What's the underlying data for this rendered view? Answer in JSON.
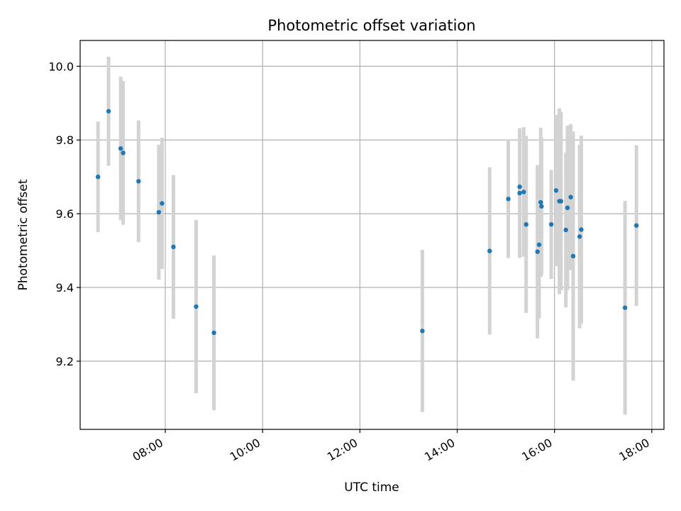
{
  "chart_data": {
    "type": "scatter",
    "title": "Photometric offset variation",
    "xlabel": "UTC time",
    "ylabel": "Photometric offset",
    "x_unit": "hours",
    "xlim": [
      "06:15",
      "18:15"
    ],
    "ylim": [
      9.015,
      10.07
    ],
    "x_ticks": [
      "08:00",
      "10:00",
      "12:00",
      "14:00",
      "16:00",
      "18:00"
    ],
    "y_ticks": [
      "9.2",
      "9.4",
      "9.6",
      "9.8",
      "10.0"
    ],
    "grid": true,
    "legend": "none",
    "colors": {
      "point": "#1f77b4",
      "errorbar": "#d3d3d3",
      "grid": "#b0b0b0",
      "axis": "#000000"
    },
    "series": [
      {
        "points": [
          {
            "x": "06:37",
            "y": 9.7,
            "yerr": 0.15
          },
          {
            "x": "06:50",
            "y": 9.878,
            "yerr": 0.148
          },
          {
            "x": "07:05",
            "y": 9.777,
            "yerr": 0.195
          },
          {
            "x": "07:08",
            "y": 9.765,
            "yerr": 0.195
          },
          {
            "x": "07:27",
            "y": 9.688,
            "yerr": 0.165
          },
          {
            "x": "07:52",
            "y": 9.604,
            "yerr": 0.183
          },
          {
            "x": "07:56",
            "y": 9.628,
            "yerr": 0.178
          },
          {
            "x": "08:10",
            "y": 9.51,
            "yerr": 0.195
          },
          {
            "x": "08:38",
            "y": 9.348,
            "yerr": 0.235
          },
          {
            "x": "09:00",
            "y": 9.277,
            "yerr": 0.21
          },
          {
            "x": "13:17",
            "y": 9.282,
            "yerr": 0.22
          },
          {
            "x": "14:40",
            "y": 9.499,
            "yerr": 0.227
          },
          {
            "x": "15:03",
            "y": 9.64,
            "yerr": 0.16
          },
          {
            "x": "15:17",
            "y": 9.673,
            "yerr": 0.158
          },
          {
            "x": "15:17",
            "y": 9.656,
            "yerr": 0.176
          },
          {
            "x": "15:22",
            "y": 9.659,
            "yerr": 0.176
          },
          {
            "x": "15:25",
            "y": 9.571,
            "yerr": 0.24
          },
          {
            "x": "15:39",
            "y": 9.497,
            "yerr": 0.235
          },
          {
            "x": "15:41",
            "y": 9.516,
            "yerr": 0.2
          },
          {
            "x": "15:43",
            "y": 9.631,
            "yerr": 0.202
          },
          {
            "x": "15:44",
            "y": 9.62,
            "yerr": 0.186
          },
          {
            "x": "15:56",
            "y": 9.571,
            "yerr": 0.148
          },
          {
            "x": "16:02",
            "y": 9.663,
            "yerr": 0.205
          },
          {
            "x": "16:06",
            "y": 9.634,
            "yerr": 0.252
          },
          {
            "x": "16:08",
            "y": 9.634,
            "yerr": 0.242
          },
          {
            "x": "16:14",
            "y": 9.556,
            "yerr": 0.21
          },
          {
            "x": "16:16",
            "y": 9.616,
            "yerr": 0.223
          },
          {
            "x": "16:20",
            "y": 9.645,
            "yerr": 0.198
          },
          {
            "x": "16:23",
            "y": 9.485,
            "yerr": 0.338
          },
          {
            "x": "16:31",
            "y": 9.538,
            "yerr": 0.249
          },
          {
            "x": "16:33",
            "y": 9.557,
            "yerr": 0.255
          },
          {
            "x": "17:27",
            "y": 9.345,
            "yerr": 0.29
          },
          {
            "x": "17:41",
            "y": 9.568,
            "yerr": 0.218
          }
        ]
      }
    ]
  }
}
